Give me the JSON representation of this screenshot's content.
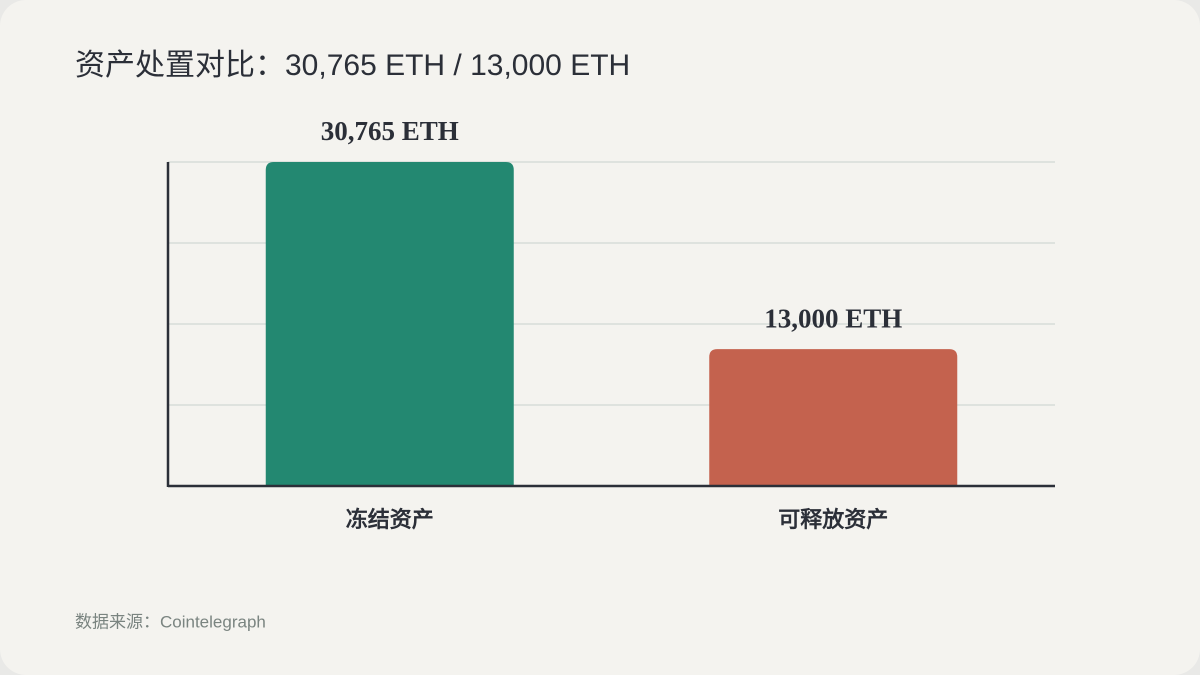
{
  "chart_data": {
    "type": "bar",
    "title": "资产处置对比：30,765 ETH / 13,000 ETH",
    "categories": [
      "冻结资产",
      "可释放资产"
    ],
    "values": [
      30765,
      13000
    ],
    "value_labels": [
      "30,765 ETH",
      "13,000 ETH"
    ],
    "colors": [
      "#238871",
      "#c4624e"
    ],
    "ylim": [
      0,
      30765
    ],
    "yticks": [
      0,
      7691.25,
      15382.5,
      23073.75,
      30765
    ],
    "grid": true,
    "source": "数据来源：Cointelegraph"
  }
}
